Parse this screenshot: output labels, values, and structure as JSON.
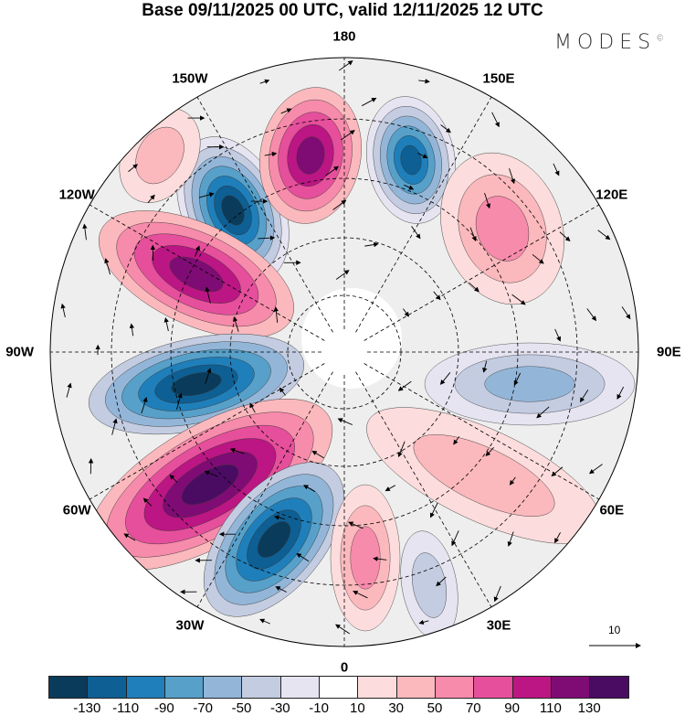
{
  "title": "Base 09/11/2025 00 UTC, valid 12/11/2025 12 UTC",
  "logo": "MODES",
  "logo_mark": "©",
  "longitude_labels": [
    "180",
    "150E",
    "120E",
    "90E",
    "60E",
    "30E",
    "0",
    "30W",
    "60W",
    "90W",
    "120W",
    "150W"
  ],
  "vector_reference": "10",
  "colorbar": {
    "colors": [
      "#0b3b5a",
      "#0e5f93",
      "#1f7fba",
      "#57a0c9",
      "#93b6d8",
      "#c3cce1",
      "#e6e4f0",
      "#ffffff",
      "#fcdcdc",
      "#fbb9bd",
      "#f78bab",
      "#e64f9b",
      "#bb1683",
      "#7f0c74",
      "#4a0c63"
    ],
    "labels": [
      "-130",
      "-110",
      "-90",
      "-70",
      "-50",
      "-30",
      "-10",
      "10",
      "30",
      "50",
      "70",
      "90",
      "110",
      "130"
    ]
  }
}
